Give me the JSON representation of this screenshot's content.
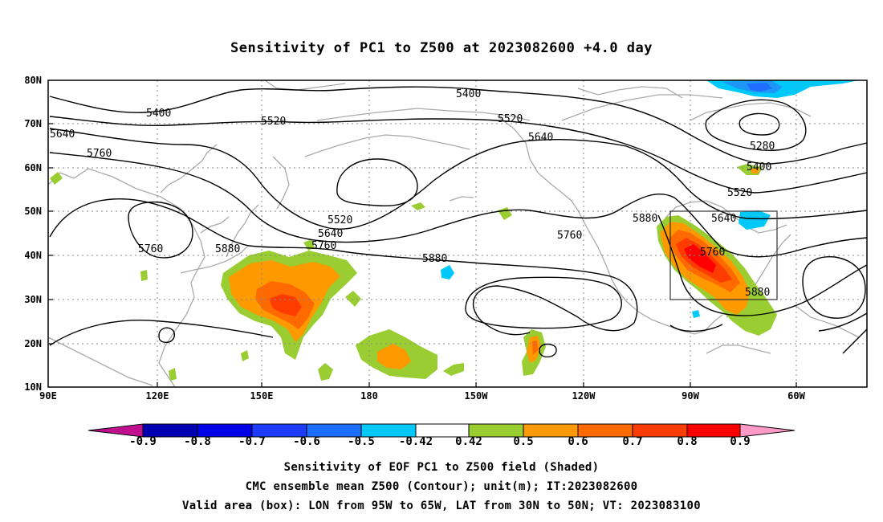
{
  "title": "Sensitivity of PC1 to Z500 at 2023082600 +4.0 day",
  "lat_labels": [
    "80N",
    "70N",
    "60N",
    "50N",
    "40N",
    "30N",
    "20N",
    "10N"
  ],
  "lon_labels": [
    "90E",
    "120E",
    "150E",
    "180",
    "150W",
    "120W",
    "90W",
    "60W"
  ],
  "contour_labels": {
    "c5400a": "5400",
    "c5400b": "5400",
    "c5400c": "5400",
    "c5520a": "5520",
    "c5520b": "5520",
    "c5520c": "5520",
    "c5520d": "5520",
    "c5640a": "5640",
    "c5640b": "5640",
    "c5640c": "5640",
    "c5640d": "5640",
    "c5760a": "5760",
    "c5760b": "5760",
    "c5760c": "5760",
    "c5760d": "5760",
    "c5760e": "5760",
    "c5880a": "5880",
    "c5880b": "5880",
    "c5880c": "5880",
    "c5880d": "5880",
    "c5280": "5280"
  },
  "colorbar": {
    "labels": [
      "-0.9",
      "-0.8",
      "-0.7",
      "-0.6",
      "-0.5",
      "-0.42",
      "0.42",
      "0.5",
      "0.6",
      "0.7",
      "0.8",
      "0.9"
    ],
    "colors": [
      "#c0108f",
      "#0000b0",
      "#0000e6",
      "#1e3cff",
      "#1e6eff",
      "#2196f6",
      "#00c8f8",
      "#ffffff",
      "#9acd32",
      "#ff9900",
      "#ff6a00",
      "#ff3c00",
      "#ff0000",
      "#ff9ac8"
    ]
  },
  "caption": {
    "line1": "Sensitivity of EOF PC1 to Z500 field (Shaded)",
    "line2": "CMC ensemble mean Z500 (Contour); unit(m); IT:2023082600",
    "line3": "Valid area (box): LON from 95W to 65W, LAT from 30N to 50N; VT: 2023083100"
  }
}
